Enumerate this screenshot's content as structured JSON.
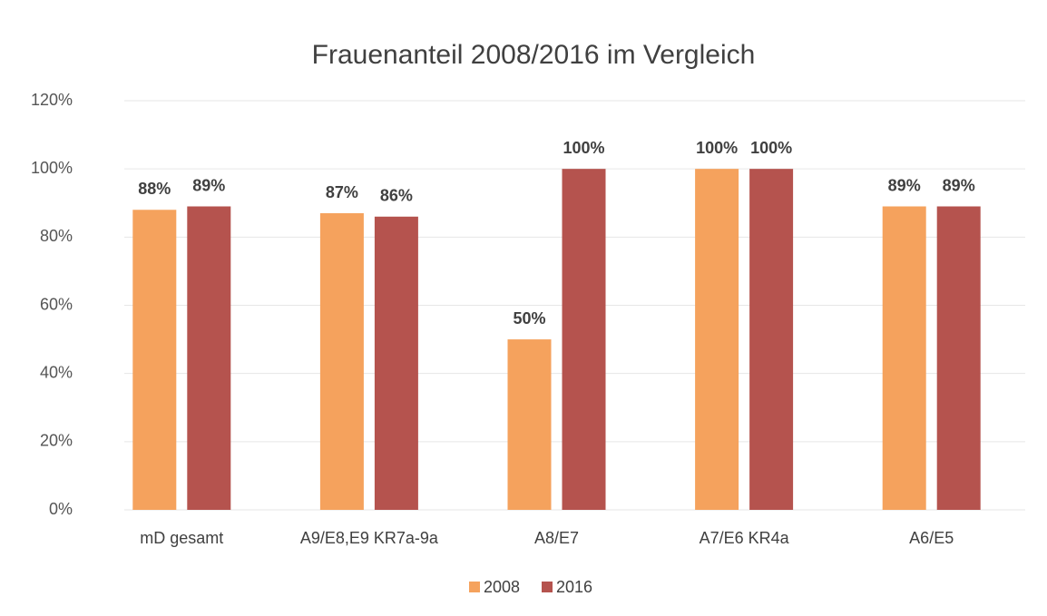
{
  "chart_data": {
    "type": "bar",
    "title": "Frauenanteil 2008/2016 im Vergleich",
    "categories": [
      "mD gesamt",
      "A9/E8,E9 KR7a-9a",
      "A8/E7",
      "A7/E6 KR4a",
      "A6/E5"
    ],
    "series": [
      {
        "name": "2008",
        "color": "#f5a25d",
        "values": [
          88,
          87,
          50,
          100,
          89
        ],
        "value_labels": [
          "88%",
          "87%",
          "50%",
          "100%",
          "89%"
        ]
      },
      {
        "name": "2016",
        "color": "#b5534e",
        "values": [
          89,
          86,
          100,
          100,
          89
        ],
        "value_labels": [
          "89%",
          "86%",
          "100%",
          "100%",
          "89%"
        ]
      }
    ],
    "ylim": [
      0,
      120
    ],
    "yticks": [
      {
        "value": 0,
        "label": "0%"
      },
      {
        "value": 20,
        "label": "20%"
      },
      {
        "value": 40,
        "label": "40%"
      },
      {
        "value": 60,
        "label": "60%"
      },
      {
        "value": 80,
        "label": "80%"
      },
      {
        "value": 100,
        "label": "100%"
      },
      {
        "value": 120,
        "label": "120%"
      }
    ],
    "grid": true,
    "legend": "bottom"
  }
}
